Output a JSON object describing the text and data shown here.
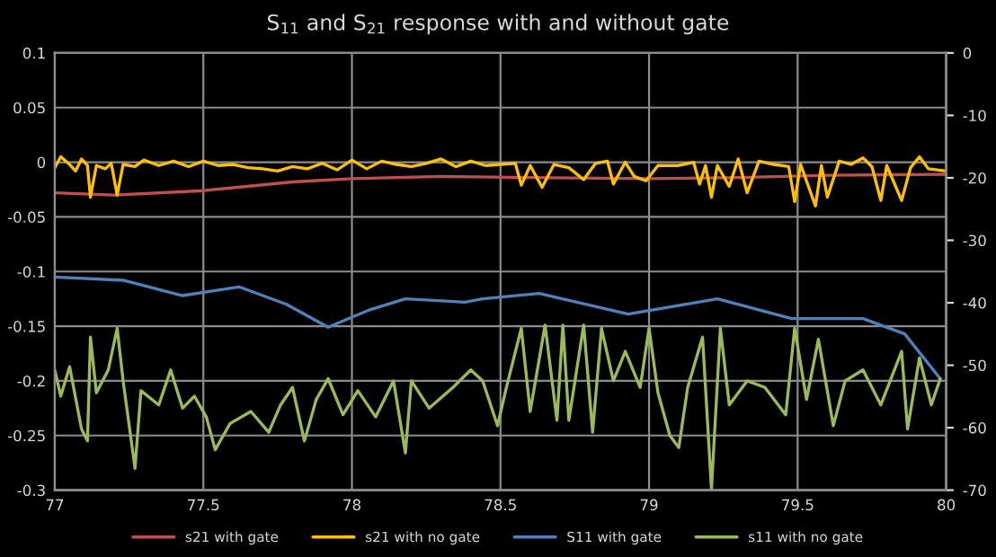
{
  "chart_data": {
    "type": "line",
    "title": "S$_{11}$ and S$_{21}$ response with and without gate",
    "xlim": [
      77,
      80
    ],
    "xticks": [
      77,
      77.5,
      78,
      78.5,
      79,
      79.5,
      80
    ],
    "ylim": [
      -0.3,
      0.1
    ],
    "yticks": [
      -0.3,
      -0.25,
      -0.2,
      -0.15,
      -0.1,
      -0.05,
      0,
      0.05,
      0.1
    ],
    "y2lim": [
      -70,
      0
    ],
    "y2ticks": [
      -70,
      -60,
      -50,
      -40,
      -30,
      -20,
      -10,
      0
    ],
    "grid": true,
    "legend": "bottom",
    "marker": "none",
    "line_style": "solid",
    "series": [
      {
        "name": "s21 with gate",
        "color": "#c0504d",
        "x": [
          77.0,
          77.2,
          77.5,
          77.8,
          78.0,
          78.3,
          78.6,
          79.0,
          79.3,
          79.6,
          80.0
        ],
        "values": [
          -0.028,
          -0.03,
          -0.026,
          -0.018,
          -0.015,
          -0.013,
          -0.014,
          -0.015,
          -0.014,
          -0.012,
          -0.011
        ]
      },
      {
        "name": "s21 with no gate",
        "color": "#ffc000",
        "x": [
          77.0,
          77.02,
          77.05,
          77.07,
          77.09,
          77.11,
          77.12,
          77.14,
          77.17,
          77.19,
          77.21,
          77.23,
          77.27,
          77.3,
          77.35,
          77.4,
          77.45,
          77.5,
          77.55,
          77.6,
          77.65,
          77.7,
          77.75,
          77.8,
          77.85,
          77.9,
          77.95,
          78.0,
          78.05,
          78.1,
          78.15,
          78.2,
          78.25,
          78.3,
          78.35,
          78.4,
          78.45,
          78.5,
          78.55,
          78.57,
          78.6,
          78.64,
          78.68,
          78.73,
          78.78,
          78.82,
          78.86,
          78.88,
          78.92,
          78.95,
          78.99,
          79.03,
          79.1,
          79.15,
          79.17,
          79.19,
          79.21,
          79.23,
          79.27,
          79.3,
          79.33,
          79.37,
          79.42,
          79.47,
          79.49,
          79.51,
          79.56,
          79.58,
          79.6,
          79.64,
          79.68,
          79.72,
          79.75,
          79.78,
          79.8,
          79.85,
          79.88,
          79.91,
          79.94,
          80.0
        ],
        "values": [
          -0.005,
          0.005,
          -0.002,
          -0.008,
          0.003,
          -0.003,
          -0.032,
          -0.003,
          -0.006,
          -0.001,
          -0.03,
          -0.002,
          -0.004,
          0.002,
          -0.003,
          0.001,
          -0.004,
          0.001,
          -0.003,
          -0.002,
          -0.005,
          -0.006,
          -0.008,
          -0.004,
          -0.006,
          -0.001,
          -0.007,
          0.002,
          -0.006,
          0.001,
          -0.002,
          -0.004,
          -0.001,
          0.003,
          -0.004,
          0.001,
          -0.003,
          -0.002,
          -0.001,
          -0.021,
          -0.003,
          -0.023,
          -0.002,
          -0.005,
          -0.016,
          -0.001,
          0.001,
          -0.02,
          0.0,
          -0.013,
          -0.017,
          -0.003,
          -0.003,
          0.0,
          -0.02,
          -0.003,
          -0.032,
          -0.003,
          -0.022,
          0.003,
          -0.028,
          0.001,
          -0.002,
          -0.004,
          -0.036,
          -0.002,
          -0.04,
          -0.003,
          -0.032,
          0.001,
          -0.002,
          0.004,
          -0.004,
          -0.035,
          -0.003,
          -0.035,
          -0.005,
          0.005,
          -0.006,
          -0.008
        ]
      },
      {
        "name": "S11 with gate",
        "color": "#4f81bd",
        "x": [
          77.0,
          77.23,
          77.43,
          77.62,
          77.78,
          77.92,
          78.06,
          78.18,
          78.38,
          78.44,
          78.63,
          78.93,
          79.23,
          79.48,
          79.72,
          79.86,
          79.98
        ],
        "values": [
          -0.105,
          -0.108,
          -0.122,
          -0.114,
          -0.13,
          -0.151,
          -0.135,
          -0.125,
          -0.128,
          -0.125,
          -0.12,
          -0.139,
          -0.125,
          -0.143,
          -0.143,
          -0.157,
          -0.198
        ]
      },
      {
        "name": "s11 with no gate",
        "color": "#9bbb59",
        "x": [
          77.0,
          77.02,
          77.05,
          77.09,
          77.11,
          77.12,
          77.14,
          77.18,
          77.21,
          77.23,
          77.27,
          77.29,
          77.35,
          77.39,
          77.43,
          77.47,
          77.51,
          77.54,
          77.59,
          77.66,
          77.72,
          77.76,
          77.8,
          77.84,
          77.88,
          77.92,
          77.97,
          78.02,
          78.08,
          78.14,
          78.18,
          78.2,
          78.26,
          78.34,
          78.4,
          78.44,
          78.49,
          78.52,
          78.57,
          78.6,
          78.65,
          78.69,
          78.71,
          78.73,
          78.78,
          78.81,
          78.84,
          78.88,
          78.92,
          78.97,
          79.0,
          79.03,
          79.07,
          79.1,
          79.13,
          79.18,
          79.21,
          79.24,
          79.27,
          79.33,
          79.39,
          79.46,
          79.49,
          79.53,
          79.57,
          79.62,
          79.66,
          79.72,
          79.78,
          79.85,
          79.87,
          79.91,
          79.95,
          79.98
        ],
        "values": [
          -0.19,
          -0.214,
          -0.187,
          -0.244,
          -0.255,
          -0.16,
          -0.211,
          -0.19,
          -0.152,
          -0.2,
          -0.28,
          -0.209,
          -0.222,
          -0.19,
          -0.225,
          -0.214,
          -0.233,
          -0.263,
          -0.239,
          -0.228,
          -0.247,
          -0.222,
          -0.206,
          -0.255,
          -0.217,
          -0.198,
          -0.231,
          -0.209,
          -0.233,
          -0.2,
          -0.266,
          -0.2,
          -0.225,
          -0.206,
          -0.19,
          -0.2,
          -0.241,
          -0.206,
          -0.152,
          -0.228,
          -0.149,
          -0.236,
          -0.149,
          -0.236,
          -0.149,
          -0.247,
          -0.152,
          -0.2,
          -0.173,
          -0.206,
          -0.152,
          -0.211,
          -0.25,
          -0.261,
          -0.206,
          -0.16,
          -0.299,
          -0.152,
          -0.222,
          -0.2,
          -0.206,
          -0.231,
          -0.152,
          -0.217,
          -0.162,
          -0.241,
          -0.2,
          -0.19,
          -0.222,
          -0.173,
          -0.244,
          -0.179,
          -0.222,
          -0.198
        ]
      }
    ]
  }
}
